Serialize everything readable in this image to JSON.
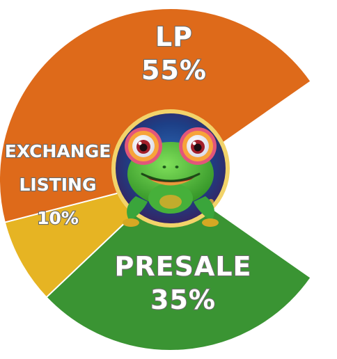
{
  "chart_data": {
    "type": "pie",
    "slices": [
      {
        "label_lines": [
          "LP",
          "55%"
        ],
        "value": 55,
        "color": "#de6a1a"
      },
      {
        "label_lines": [
          "EXCHANGE",
          "LISTING",
          "10%"
        ],
        "value": 10,
        "color": "#e6b423"
      },
      {
        "label_lines": [
          "PRESALE",
          "35%"
        ],
        "value": 35,
        "color": "#3a9433"
      }
    ],
    "center_image": "frog-mascot",
    "legend": "none"
  }
}
